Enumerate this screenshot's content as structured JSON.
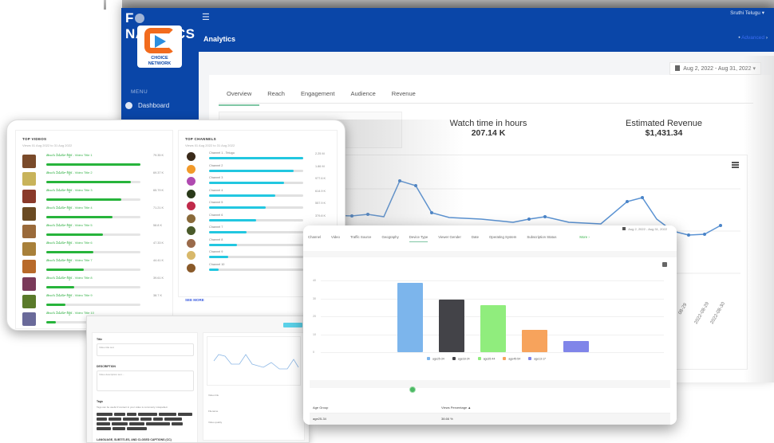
{
  "app": {
    "brand": "FONALTYICS",
    "brand_parts": [
      "F",
      "NALYTICS"
    ],
    "logo": {
      "line1": "CHOICE",
      "line2": "NETWORK"
    },
    "menu_toggle_icon": "hamburger-icon"
  },
  "sidebar": {
    "menu_label": "MENU",
    "items": [
      {
        "label": "Dashboard",
        "icon": "dashboard-icon"
      }
    ]
  },
  "header": {
    "page_title": "Analytics",
    "user": "Sruthi Telugu ▾",
    "advanced_link": "Advanced",
    "advanced_prefix": "•",
    "advanced_suffix": "›"
  },
  "main": {
    "date_range": "Aug 2, 2022 - Aug 31, 2022 ▾",
    "tabs": [
      {
        "label": "Overview",
        "active": true
      },
      {
        "label": "Reach",
        "active": false
      },
      {
        "label": "Engagement",
        "active": false
      },
      {
        "label": "Audience",
        "active": false
      },
      {
        "label": "Revenue",
        "active": false
      }
    ],
    "stats": [
      {
        "label": "Watch time in hours",
        "value": "207.14 K"
      },
      {
        "label": "Estimated Revenue",
        "value": "$1,431.34"
      }
    ],
    "line_chart_x_labels": [
      "08-29",
      "2022-08-29",
      "2022-08-30"
    ]
  },
  "top_videos": {
    "title": "TOP VIDEOS",
    "subtitle": "Views 01 Aug 2022 to 31 Aug 2022",
    "items": [
      {
        "title": "తెలుగు వీడియో శీర్షిక - Video Title 1",
        "value": "79.35 K",
        "pct": 100,
        "color": "#7a4a2a"
      },
      {
        "title": "తెలుగు వీడియో శీర్షిక - Video Title 2",
        "value": "69.37 K",
        "pct": 90,
        "color": "#c8b35a"
      },
      {
        "title": "తెలుగు వీడియో శీర్షిక - Video Title 3",
        "value": "65.79 K",
        "pct": 80,
        "color": "#8a3a2a"
      },
      {
        "title": "తెలుగు వీడియో శీర్షిక - Video Title 4",
        "value": "71.21 K",
        "pct": 70,
        "color": "#6a4a22"
      },
      {
        "title": "తెలుగు వీడియో శీర్షిక - Video Title 5",
        "value": "58.8 K",
        "pct": 60,
        "color": "#9a6a3a"
      },
      {
        "title": "తెలుగు వీడియో శీర్షిక - Video Title 6",
        "value": "47.33 K",
        "pct": 50,
        "color": "#a8803a"
      },
      {
        "title": "తెలుగు వీడియో శీర్షిక - Video Title 7",
        "value": "44.41 K",
        "pct": 40,
        "color": "#b86a2a"
      },
      {
        "title": "తెలుగు వీడియో శీర్షిక - Video Title 8",
        "value": "39.61 K",
        "pct": 30,
        "color": "#7a3a5a"
      },
      {
        "title": "తెలుగు వీడియో శీర్షిక - Video Title 9",
        "value": "38.7 K",
        "pct": 20,
        "color": "#5a7a2a"
      },
      {
        "title": "తెలుగు వీడియో శీర్షిక - Video Title 10",
        "value": "",
        "pct": 10,
        "color": "#6a6a9a"
      }
    ]
  },
  "top_channels": {
    "title": "TOP CHANNELS",
    "subtitle": "Views 01 Aug 2022 to 31 Aug 2022",
    "see_more": "SEE MORE",
    "items": [
      {
        "name": "Channel 1 - Telugu",
        "value": "2.25 M",
        "pct": 100,
        "color": "#3a2a1a"
      },
      {
        "name": "Channel 2",
        "value": "1.86 M",
        "pct": 90,
        "color": "#f29a2a"
      },
      {
        "name": "Channel 3",
        "value": "977.6 K",
        "pct": 80,
        "color": "#b04ab0"
      },
      {
        "name": "Channel 4",
        "value": "614.9 K",
        "pct": 70,
        "color": "#2a3a1a"
      },
      {
        "name": "Channel 5",
        "value": "557.9 K",
        "pct": 60,
        "color": "#c02a4a"
      },
      {
        "name": "Channel 6",
        "value": "379.8 K",
        "pct": 50,
        "color": "#8a6a3a"
      },
      {
        "name": "Channel 7",
        "value": "",
        "pct": 40,
        "color": "#4a5a2a"
      },
      {
        "name": "Channel 8",
        "value": "",
        "pct": 30,
        "color": "#9a6a4a"
      },
      {
        "name": "Channel 9",
        "value": "",
        "pct": 20,
        "color": "#d8b86a"
      },
      {
        "name": "Channel 10",
        "value": "",
        "pct": 10,
        "color": "#8a5a2a"
      }
    ]
  },
  "device_window": {
    "date_range": "Aug 2, 2022 - Aug 31, 2022",
    "tabs": [
      {
        "label": "Channel",
        "active": false
      },
      {
        "label": "Video",
        "active": false
      },
      {
        "label": "Traffic Source",
        "active": false
      },
      {
        "label": "Geography",
        "active": false
      },
      {
        "label": "Device Type",
        "active": true
      },
      {
        "label": "Viewer Gender",
        "active": false
      },
      {
        "label": "Date",
        "active": false
      },
      {
        "label": "Operating System",
        "active": false
      },
      {
        "label": "Subscription Status",
        "active": false
      }
    ],
    "more_label": "More ›",
    "table": {
      "headers": [
        "Age Group",
        "Views Percentage ▲"
      ],
      "rows": [
        [
          "age25-34",
          "38.66 %"
        ]
      ]
    }
  },
  "chart_data": {
    "type": "bar",
    "title": "",
    "categories": [
      "age25-34",
      "age18-24",
      "age35-44",
      "age45-54",
      "age13-17"
    ],
    "values": [
      38.7,
      29.6,
      26.3,
      12.7,
      6.1
    ],
    "colors": [
      "#7cb5ec",
      "#434348",
      "#90ed7d",
      "#f7a35c",
      "#8085e9"
    ],
    "xlabel": "",
    "ylabel": "",
    "yticks": [
      0,
      10,
      20,
      30,
      40
    ],
    "ylim": [
      0,
      45
    ],
    "grid": true,
    "legend_position": "bottom"
  },
  "edit_window": {
    "title_label": "Title",
    "title_value": "Video title text",
    "description_label": "DESCRIPTION",
    "description_value": "Video description text ...",
    "tags_label": "Tags",
    "tags_help": "Tags can be useful if content in your video is commonly misspelled.",
    "language_label": "LANGUAGE, SUBTITLES, AND CLOSED CAPTIONS (CC)",
    "save_label": "SAVE",
    "side_fields": [
      "Video link",
      "Filename",
      "Video quality"
    ]
  }
}
